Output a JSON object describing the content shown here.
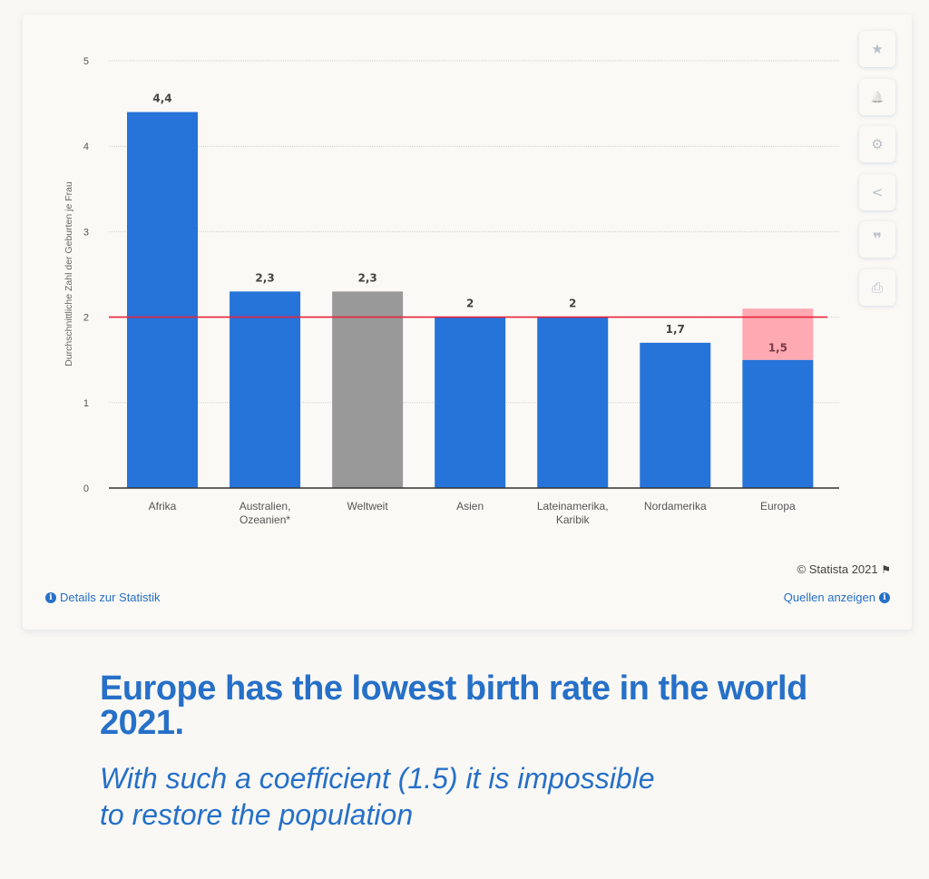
{
  "chart_data": {
    "type": "bar",
    "title": "",
    "xlabel": "",
    "ylabel": "Durchschnittliche Zahl der Geburten je Frau",
    "ylim": [
      0,
      5
    ],
    "yticks": [
      0,
      1,
      2,
      3,
      4,
      5
    ],
    "ytick_labels": [
      "0",
      "1",
      "2",
      "3",
      "4",
      "5"
    ],
    "grid": true,
    "categories": [
      "Afrika",
      "Australien, Ozeanien*",
      "Weltweit",
      "Asien",
      "Lateinamerika, Karibik",
      "Nordamerika",
      "Europa"
    ],
    "category_lines": [
      [
        "Afrika"
      ],
      [
        "Australien,",
        "Ozeanien*"
      ],
      [
        "Weltweit"
      ],
      [
        "Asien"
      ],
      [
        "Lateinamerika,",
        "Karibik"
      ],
      [
        "Nordamerika"
      ],
      [
        "Europa"
      ]
    ],
    "values": [
      4.4,
      2.3,
      2.3,
      2.0,
      2.0,
      1.7,
      1.5
    ],
    "value_labels": [
      "4,4",
      "2,3",
      "2,3",
      "2",
      "2",
      "1,7",
      "1,5"
    ],
    "bar_colors": [
      "#2673d9",
      "#2673d9",
      "#999999",
      "#2673d9",
      "#2673d9",
      "#2673d9",
      "#2673d9"
    ],
    "annotations": [
      {
        "type": "hline",
        "y": 2.0,
        "color": "#e8223a",
        "description": "replacement level line"
      },
      {
        "type": "highlight",
        "category": "Europa",
        "from": 1.5,
        "to": 2.1,
        "color": "#ffaab2",
        "description": "gap to replacement level"
      }
    ],
    "legend": "none"
  },
  "sidebar": {
    "buttons": [
      {
        "name": "favorite",
        "icon": "star-icon",
        "glyph": "★"
      },
      {
        "name": "notify",
        "icon": "bell-icon",
        "glyph": "🔔"
      },
      {
        "name": "settings",
        "icon": "gear-icon",
        "glyph": "⚙"
      },
      {
        "name": "share",
        "icon": "share-icon",
        "glyph": "<"
      },
      {
        "name": "cite",
        "icon": "quote-icon",
        "glyph": "❞"
      },
      {
        "name": "print",
        "icon": "print-icon",
        "glyph": "⎙"
      }
    ]
  },
  "footer": {
    "copyright": "© Statista 2021",
    "details_link": "Details zur Statistik",
    "sources_link": "Quellen anzeigen"
  },
  "caption": {
    "headline": "Europe has the lowest birth rate in the world 2021.",
    "subline_1": "With such a coefficient (1.5) it is impossible",
    "subline_2": "to restore the population"
  },
  "colors": {
    "accent": "#2670c8",
    "bar": "#2673d9",
    "world_bar": "#999999",
    "reference_line": "#e8223a",
    "highlight": "#ffaab2"
  }
}
